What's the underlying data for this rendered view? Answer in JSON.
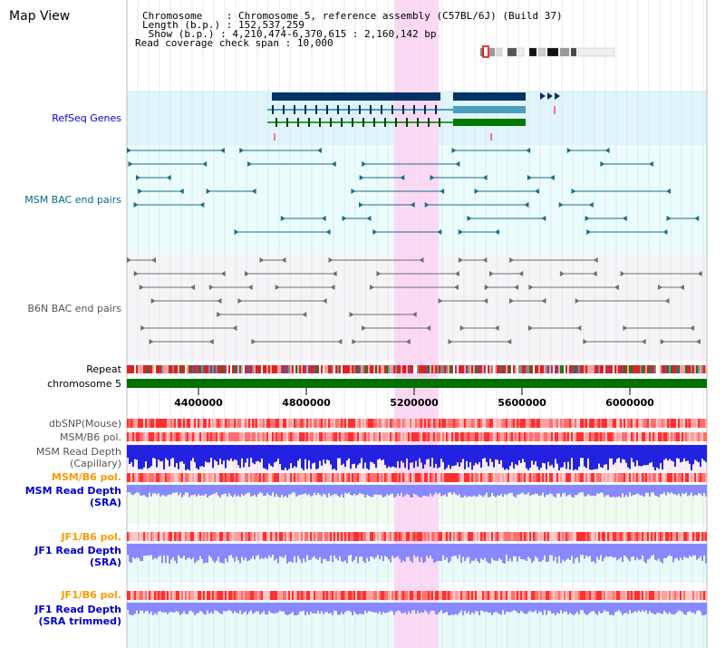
{
  "title": "Map View",
  "info": [
    {
      "key": "Chromosome",
      "sep": "    :",
      "value": " Chromosome 5, reference assembly (C57BL/6J) (Build 37)"
    },
    {
      "key": "Length (b.p.)",
      "sep": " :",
      "value": " 152,537,259"
    },
    {
      "key": " Show (b.p.)",
      "sep": " :",
      "value": " 4,210,474-6,370,615 : 2,160,142 bp"
    },
    {
      "key": "Read coverage check span",
      "sep": " :",
      "value": " 10,000"
    }
  ],
  "tracks": {
    "refseq": {
      "label": "RefSeq Genes",
      "color": "#0000cc"
    },
    "msm_bac": {
      "label": "MSM BAC end pairs",
      "color": "#006c8c"
    },
    "b6n_bac": {
      "label": "B6N BAC end pairs",
      "color": "#555555"
    },
    "repeat": {
      "label": "Repeat",
      "color": "#000000"
    },
    "chromosome": {
      "label": "chromosome 5",
      "color": "#000000"
    },
    "dbsnp": {
      "label": "dbSNP(Mouse)",
      "color": "#555555"
    },
    "msm_b6_pol_1": {
      "label": "MSM/B6 pol.",
      "color": "#555555"
    },
    "msm_depth_cap": {
      "label_line1": "MSM Read Depth",
      "label_line2": "(Capillary)",
      "color": "#555555"
    },
    "msm_b6_pol_2": {
      "label": "MSM/B6 pol.",
      "color": "#ff9900"
    },
    "msm_depth_sra": {
      "label_line1": "MSM Read Depth",
      "label_line2": "(SRA)",
      "color": "#0000cc"
    },
    "jf1_b6_pol_1": {
      "label": "JF1/B6 pol.",
      "color": "#ff9900"
    },
    "jf1_depth_sra": {
      "label_line1": "JF1 Read Depth",
      "label_line2": "(SRA)",
      "color": "#0000cc"
    },
    "jf1_b6_pol_2": {
      "label": "JF1/B6 pol.",
      "color": "#ff9900"
    },
    "jf1_depth_trim": {
      "label_line1": "JF1 Read Depth",
      "label_line2": "(SRA trimmed)",
      "color": "#0000cc"
    }
  },
  "axis_ticks": [
    "4400000",
    "4800000",
    "5200000",
    "5600000",
    "6000000"
  ],
  "colors": {
    "refseq_bg": "#e0f4fb",
    "msm_bac_bg": "#eafcfc",
    "b6n_bac_bg": "#f5f5f8",
    "highlight": "#fbd9f5",
    "chromosome_bar": "#007000",
    "gene_dark": "#003366",
    "gene_mid": "#4a9fc0",
    "gene_green": "#007a00",
    "msm_feature": "#1a6e88",
    "b6n_feature": "#6f6f6f",
    "depth_blue": "#2222e0",
    "depth_light": "#8888ff",
    "pol_red": "#ff2a2a",
    "pol_pink": "#ffb0b0"
  }
}
